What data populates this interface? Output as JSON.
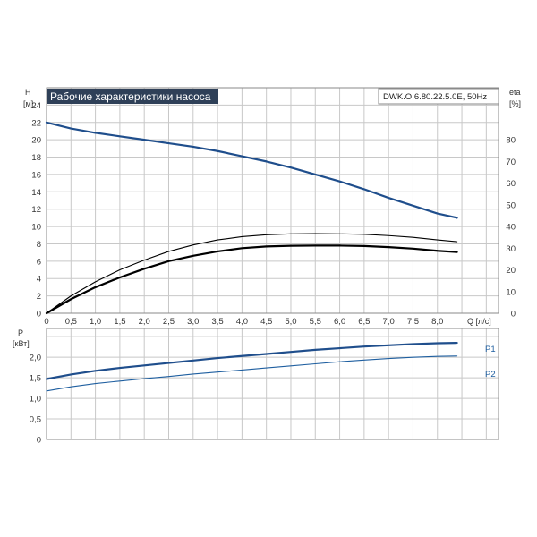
{
  "colors": {
    "blue": "#1f4e8c",
    "blue_light": "#1f5fa0",
    "black": "#000000",
    "title_bg": "#2f4058"
  },
  "chart_data": [
    {
      "type": "line",
      "title": "Рабочие характеристики насоса",
      "model": "DWK.O.6.80.22.5.0E, 50Hz",
      "xlabel": "Q [л/с]",
      "ylabel_left": [
        "H",
        "[м]"
      ],
      "ylabel_right": [
        "eta",
        "[%]"
      ],
      "xlim": [
        0,
        9.25
      ],
      "ylim_left": [
        0,
        26
      ],
      "ylim_right": [
        0,
        104
      ],
      "x_ticks": [
        "0",
        "0,5",
        "1,0",
        "1,5",
        "2,0",
        "2,5",
        "3,0",
        "3,5",
        "4,0",
        "4,5",
        "5,0",
        "5,5",
        "6,0",
        "6,5",
        "7,0",
        "7,5",
        "8,0"
      ],
      "y_ticks_left": [
        "0",
        "2",
        "4",
        "6",
        "8",
        "10",
        "12",
        "14",
        "16",
        "18",
        "20",
        "22",
        "24"
      ],
      "y_ticks_right": [
        "0",
        "10",
        "20",
        "30",
        "40",
        "50",
        "60",
        "70",
        "80"
      ],
      "grid": true,
      "series": [
        {
          "key": "H",
          "axis": "left",
          "x": [
            0,
            0.5,
            1,
            1.5,
            2,
            2.5,
            3,
            3.5,
            4,
            4.5,
            5,
            5.5,
            6,
            6.5,
            7,
            7.5,
            8,
            8.4
          ],
          "values": [
            22.0,
            21.3,
            20.8,
            20.4,
            20.0,
            19.6,
            19.2,
            18.7,
            18.1,
            17.5,
            16.8,
            16.0,
            15.2,
            14.3,
            13.3,
            12.4,
            11.5,
            11.0
          ]
        },
        {
          "key": "eta_upper",
          "axis": "right",
          "x": [
            0,
            0.5,
            1,
            1.5,
            2,
            2.5,
            3,
            3.5,
            4,
            4.5,
            5,
            5.5,
            6,
            6.5,
            7,
            7.5,
            8,
            8.4
          ],
          "values": [
            0,
            8,
            14.5,
            20,
            24.5,
            28.5,
            31.5,
            33.8,
            35.3,
            36.2,
            36.6,
            36.7,
            36.6,
            36.4,
            35.8,
            35.0,
            33.8,
            33.0
          ]
        },
        {
          "key": "eta_lower",
          "axis": "right",
          "x": [
            0,
            0.5,
            1,
            1.5,
            2,
            2.5,
            3,
            3.5,
            4,
            4.5,
            5,
            5.5,
            6,
            6.5,
            7,
            7.5,
            8,
            8.4
          ],
          "values": [
            0,
            6.5,
            12,
            16.5,
            20.5,
            24,
            26.5,
            28.5,
            30,
            30.8,
            31.1,
            31.2,
            31.2,
            31.0,
            30.5,
            29.8,
            28.8,
            28.2
          ]
        }
      ]
    },
    {
      "type": "line",
      "ylabel": [
        "P",
        "[кВт]"
      ],
      "xlim": [
        0,
        9.25
      ],
      "ylim": [
        0,
        2.7
      ],
      "y_ticks": [
        "0",
        "0,5",
        "1,0",
        "1,5",
        "2,0"
      ],
      "grid": true,
      "series": [
        {
          "name": "P1",
          "x": [
            0,
            0.5,
            1,
            1.5,
            2,
            2.5,
            3,
            3.5,
            4,
            4.5,
            5,
            5.5,
            6,
            6.5,
            7,
            7.5,
            8,
            8.4
          ],
          "values": [
            1.47,
            1.58,
            1.67,
            1.74,
            1.8,
            1.86,
            1.92,
            1.98,
            2.03,
            2.08,
            2.13,
            2.18,
            2.22,
            2.26,
            2.29,
            2.32,
            2.34,
            2.35
          ]
        },
        {
          "name": "P2",
          "x": [
            0,
            0.5,
            1,
            1.5,
            2,
            2.5,
            3,
            3.5,
            4,
            4.5,
            5,
            5.5,
            6,
            6.5,
            7,
            7.5,
            8,
            8.4
          ],
          "values": [
            1.18,
            1.28,
            1.36,
            1.42,
            1.48,
            1.53,
            1.59,
            1.64,
            1.69,
            1.74,
            1.79,
            1.84,
            1.89,
            1.93,
            1.97,
            2.0,
            2.02,
            2.03
          ]
        }
      ]
    }
  ]
}
